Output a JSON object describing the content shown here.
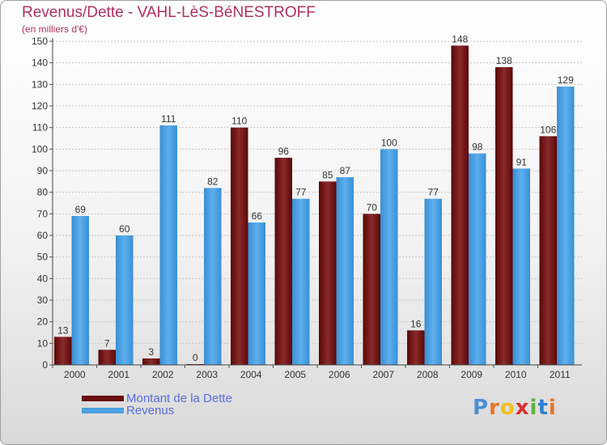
{
  "title": "Revenus/Dette - VAHL-LèS-BéNESTROFF",
  "subtitle": "(en milliers d'€)",
  "logo": {
    "text": "Proxiti",
    "colors": [
      "#4a90d9",
      "#e8732a",
      "#f0c020",
      "#d93030",
      "#60b040",
      "#2f7fd0",
      "#e8732a"
    ]
  },
  "chart_data": {
    "type": "bar",
    "categories": [
      "2000",
      "2001",
      "2002",
      "2003",
      "2004",
      "2005",
      "2006",
      "2007",
      "2008",
      "2009",
      "2010",
      "2011"
    ],
    "series": [
      {
        "name": "Montant de la Dette",
        "color": "#7a1a1a",
        "values": [
          13,
          7,
          3,
          0,
          110,
          96,
          85,
          70,
          16,
          148,
          138,
          106
        ]
      },
      {
        "name": "Revenus",
        "color": "#4aa0e0",
        "values": [
          69,
          60,
          111,
          82,
          66,
          77,
          87,
          100,
          77,
          98,
          91,
          129
        ]
      }
    ],
    "ylim": [
      0,
      150
    ],
    "yticks": [
      "0",
      "10",
      "20",
      "30",
      "40",
      "50",
      "60",
      "70",
      "80",
      "90",
      "100",
      "110",
      "120",
      "130",
      "140",
      "150"
    ],
    "grid": true,
    "legend_position": "bottom-left"
  }
}
